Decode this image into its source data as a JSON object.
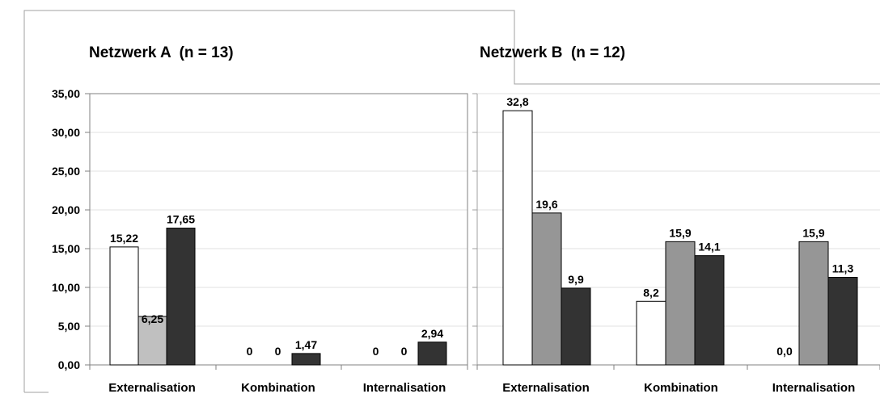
{
  "colors": {
    "series1": "#ffffff",
    "series2_a": "#c0c0c0",
    "series2_b": "#969696",
    "series3": "#333333",
    "frame": "#a0a0a0",
    "grid": "#e0e0e0"
  },
  "chart_data": [
    {
      "type": "bar",
      "title": "Netzwerk A  (n = 13)",
      "categories": [
        "Externalisation",
        "Kombination",
        "Internalisation"
      ],
      "series": [
        {
          "values": [
            15.22,
            0,
            0
          ],
          "labels": [
            "15,22",
            "0",
            "0"
          ]
        },
        {
          "values": [
            6.25,
            0,
            0
          ],
          "labels": [
            "6,25",
            "0",
            "0"
          ]
        },
        {
          "values": [
            17.65,
            1.47,
            2.94
          ],
          "labels": [
            "17,65",
            "1,47",
            "2,94"
          ]
        }
      ],
      "ylim": [
        0,
        35
      ],
      "yticks": [
        "0,00",
        "5,00",
        "10,00",
        "15,00",
        "20,00",
        "25,00",
        "30,00",
        "35,00"
      ],
      "grid": true
    },
    {
      "type": "bar",
      "title": "Netzwerk B  (n = 12)",
      "categories": [
        "Externalisation",
        "Kombination",
        "Internalisation"
      ],
      "series": [
        {
          "values": [
            32.8,
            8.2,
            0.0
          ],
          "labels": [
            "32,8",
            "8,2",
            "0,0"
          ]
        },
        {
          "values": [
            19.6,
            15.9,
            15.9
          ],
          "labels": [
            "19,6",
            "15,9",
            "15,9"
          ]
        },
        {
          "values": [
            9.9,
            14.1,
            11.3
          ],
          "labels": [
            "9,9",
            "14,1",
            "11,3"
          ]
        }
      ],
      "ylim": [
        0,
        35
      ],
      "grid": true
    }
  ]
}
